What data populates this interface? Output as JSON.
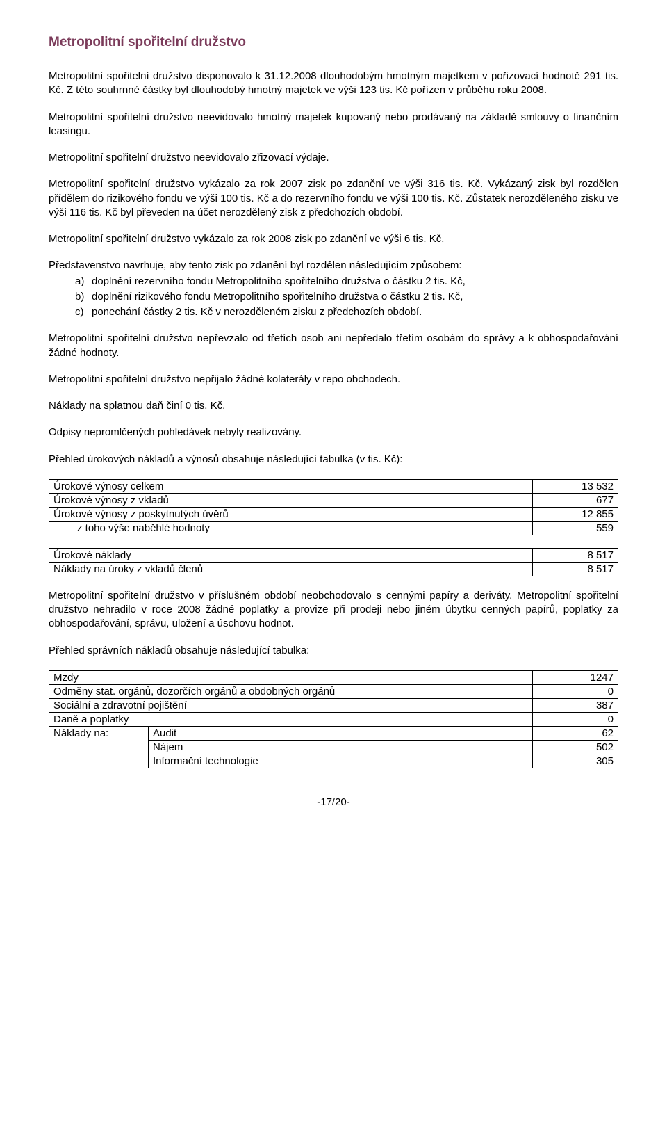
{
  "title": "Metropolitní spořitelní družstvo",
  "paragraphs": {
    "p1": "Metropolitní spořitelní družstvo disponovalo k 31.12.2008 dlouhodobým hmotným majetkem v pořizovací hodnotě 291 tis. Kč. Z této souhrnné částky byl dlouhodobý hmotný majetek ve výši 123 tis. Kč pořízen v průběhu roku 2008.",
    "p2": "Metropolitní spořitelní družstvo neevidovalo hmotný majetek kupovaný nebo prodávaný na základě smlouvy o finančním leasingu.",
    "p3": "Metropolitní spořitelní družstvo neevidovalo zřizovací výdaje.",
    "p4": "Metropolitní spořitelní družstvo vykázalo za rok 2007 zisk po zdanění ve výši 316 tis. Kč. Vykázaný zisk byl rozdělen přídělem do rizikového fondu ve výši 100 tis. Kč a do rezervního fondu ve výši 100 tis. Kč. Zůstatek nerozděleného zisku ve výši 116 tis. Kč byl převeden na účet nerozdělený zisk z předchozích období.",
    "p5": "Metropolitní spořitelní družstvo vykázalo za rok 2008 zisk po zdanění ve výši 6 tis. Kč.",
    "p6": "Představenstvo navrhuje, aby tento zisk po zdanění byl rozdělen následujícím způsobem:",
    "list_a": "doplnění rezervního fondu Metropolitního spořitelního družstva o částku 2 tis. Kč,",
    "list_b": "doplnění rizikového fondu Metropolitního spořitelního družstva o částku 2 tis. Kč,",
    "list_c": "ponechání částky 2 tis. Kč v nerozděleném zisku z předchozích období.",
    "p7": "Metropolitní spořitelní družstvo nepřevzalo od třetích osob ani nepředalo třetím osobám do správy a k obhospodařování žádné hodnoty.",
    "p8": "Metropolitní spořitelní družstvo nepřijalo žádné kolaterály v repo obchodech.",
    "p9": "Náklady na splatnou daň činí 0 tis. Kč.",
    "p10": "Odpisy nepromlčených pohledávek nebyly realizovány.",
    "p11": "Přehled úrokových nákladů a výnosů obsahuje následující tabulka (v tis. Kč):",
    "p12": "Metropolitní spořitelní družstvo v příslušném období neobchodovalo s cennými papíry a deriváty. Metropolitní spořitelní družstvo nehradilo v roce 2008 žádné poplatky a provize při prodeji nebo jiném úbytku cenných papírů, poplatky za obhospodařování, správu, uložení a úschovu hodnot.",
    "p13": "Přehled správních nákladů obsahuje následující tabulka:"
  },
  "table_income": {
    "rows": [
      {
        "label": "Úrokové výnosy celkem",
        "value": "13 532",
        "indent": false
      },
      {
        "label": "Úrokové výnosy z vkladů",
        "value": "677",
        "indent": false
      },
      {
        "label": "Úrokové výnosy z poskytnutých úvěrů",
        "value": "12 855",
        "indent": false
      },
      {
        "label": "z toho výše naběhlé hodnoty",
        "value": "559",
        "indent": true
      }
    ]
  },
  "table_expense": {
    "rows": [
      {
        "label": "Úrokové náklady",
        "value": "8 517"
      },
      {
        "label": "Náklady na úroky z vkladů členů",
        "value": "8 517"
      }
    ]
  },
  "table_admin": {
    "simple_rows": [
      {
        "label": "Mzdy",
        "value": "1247"
      },
      {
        "label": "Odměny stat. orgánů, dozorčích orgánů a obdobných orgánů",
        "value": "0"
      },
      {
        "label": "Sociální a zdravotní pojištění",
        "value": "387"
      },
      {
        "label": "Daně a poplatky",
        "value": "0"
      }
    ],
    "sub_label": "Náklady na:",
    "sub_rows": [
      {
        "label": "Audit",
        "value": "62"
      },
      {
        "label": "Nájem",
        "value": "502"
      },
      {
        "label": "Informační technologie",
        "value": "305"
      }
    ]
  },
  "markers": {
    "a": "a)",
    "b": "b)",
    "c": "c)"
  },
  "page_number": "-17/20-"
}
